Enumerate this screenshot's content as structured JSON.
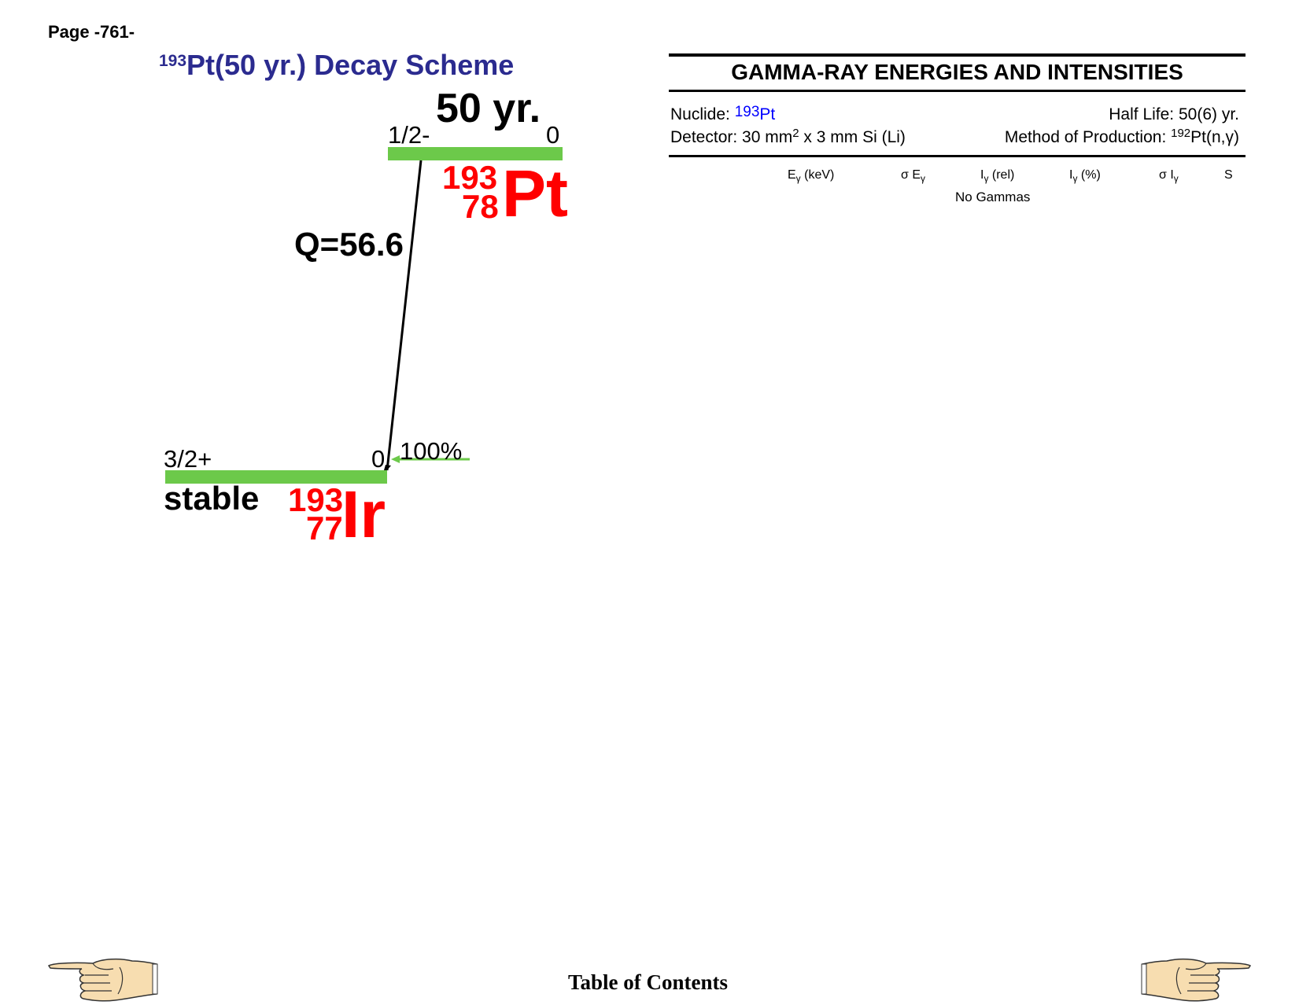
{
  "page_label": "Page -761-",
  "title": {
    "mass_superscript": "193",
    "text": "Pt(50 yr.) Decay Scheme"
  },
  "scheme": {
    "parent": {
      "half_life": "50 yr.",
      "spin": "1/2-",
      "energy": "0",
      "mass_number": "193",
      "atomic_number": "78",
      "symbol": "Pt"
    },
    "q_value": "Q=56.6",
    "daughter": {
      "spin": "3/2+",
      "energy": "0",
      "status": "stable",
      "mass_number": "193",
      "atomic_number": "77",
      "symbol": "Ir",
      "branch_intensity": "100%"
    },
    "colors": {
      "level": "#6cc94a",
      "nuclide": "#ff0000",
      "title": "#2b2b8f"
    }
  },
  "gamma_table": {
    "title": "GAMMA-RAY ENERGIES AND INTENSITIES",
    "nuclide_label": "Nuclide:",
    "nuclide_mass": "193",
    "nuclide_symbol": "Pt",
    "half_life_label": "Half Life: 50(6) yr.",
    "detector_label": "Detector: 30 mm",
    "detector_sup": "2",
    "detector_rest": " x 3 mm Si (Li)",
    "production_label": "Method of Production: ",
    "production_sup": "192",
    "production_rest": "Pt(n,γ)",
    "columns": [
      {
        "main": "E",
        "sub": "γ",
        "suffix": " (keV)"
      },
      {
        "main": "σ E",
        "sub": "γ",
        "suffix": ""
      },
      {
        "main": "I",
        "sub": "γ",
        "suffix": " (rel)"
      },
      {
        "main": "I",
        "sub": "γ",
        "suffix": " (%)"
      },
      {
        "main": "σ I",
        "sub": "γ",
        "suffix": ""
      },
      {
        "main": "S",
        "sub": "",
        "suffix": ""
      }
    ],
    "empty_message": "No Gammas"
  },
  "footer": {
    "toc_label": "Table of Contents",
    "prev_icon": "pointing-hand-left",
    "next_icon": "pointing-hand-right"
  }
}
